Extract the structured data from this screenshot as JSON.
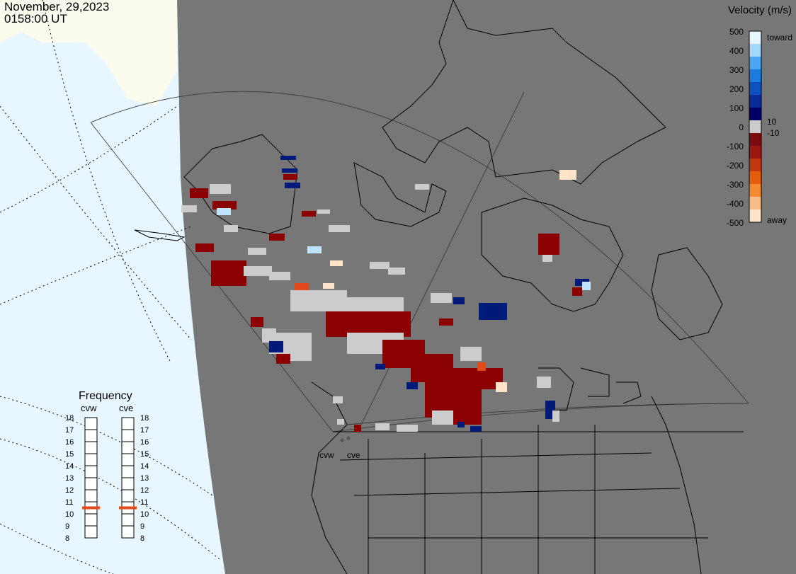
{
  "header": {
    "date": "November, 29,2023",
    "time": "0158:00 UT"
  },
  "velocity_legend": {
    "title": "Velocity (m/s)",
    "ticks": [
      "500",
      "400",
      "300",
      "200",
      "100",
      "0",
      "-100",
      "-200",
      "-300",
      "-400",
      "-500"
    ],
    "label_pos_small": "10",
    "label_neg_small": "-10",
    "label_toward": "toward",
    "label_away": "away",
    "colors": [
      "#fde3c8",
      "#f9be87",
      "#f58a31",
      "#e35d0d",
      "#c2360e",
      "#9c1812",
      "#7b0b0e",
      "#cccccc",
      "#000066",
      "#0a2a9a",
      "#1051c0",
      "#1b7be0",
      "#4aa7f5",
      "#a4d8fb",
      "#e6f6ff"
    ]
  },
  "frequency_panel": {
    "title": "Frequency",
    "radars": [
      {
        "name": "cvw",
        "frequency_mhz": 11
      },
      {
        "name": "cve",
        "frequency_mhz": 11
      }
    ],
    "scale": [
      "18",
      "17",
      "16",
      "15",
      "14",
      "13",
      "12",
      "11",
      "10",
      "9",
      "8"
    ],
    "indicator_color": "#e34a1a"
  },
  "map": {
    "stations": [
      {
        "name": "cvw"
      },
      {
        "name": "cve"
      }
    ],
    "land_color": "#777777",
    "night_color": "#777777",
    "day_land_color": "#fbfbee",
    "day_ocean_color": "#e8f6ff",
    "data_cells": [
      {
        "vel": -60
      },
      {
        "vel": -70
      },
      {
        "vel": 0
      },
      {
        "vel": -50
      },
      {
        "vel": 30
      },
      {
        "vel": -400
      }
    ]
  }
}
